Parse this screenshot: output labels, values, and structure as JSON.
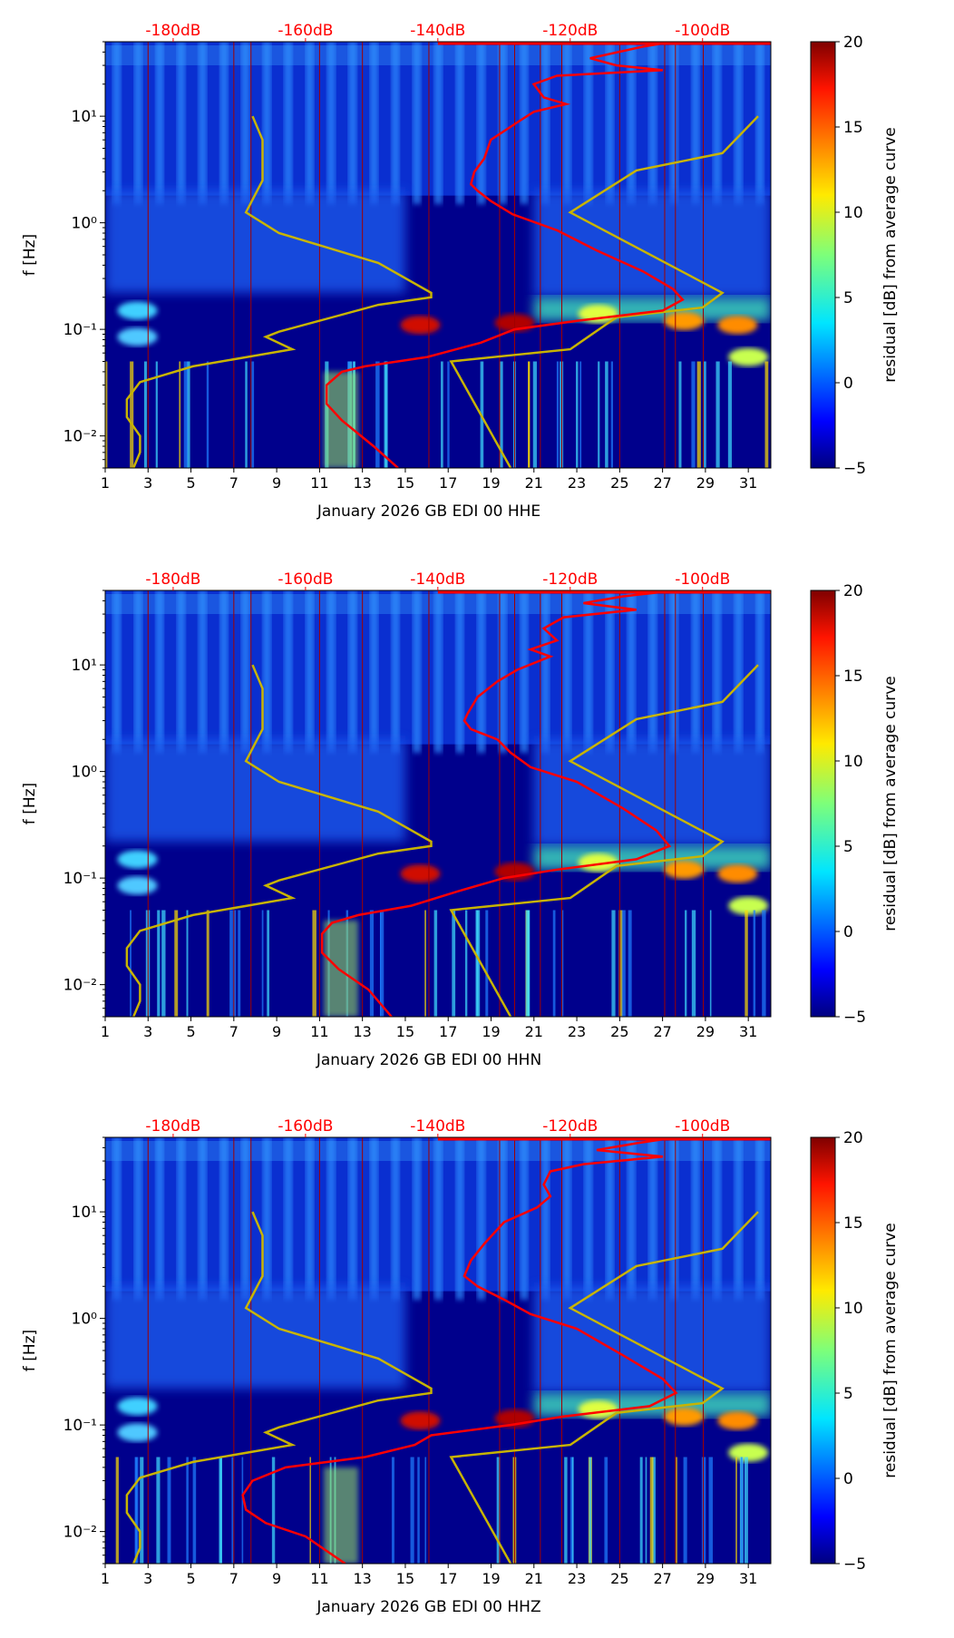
{
  "chart_data": [
    {
      "type": "heatmap",
      "title": "",
      "xlabel": "January 2026 GB EDI 00 HHE",
      "ylabel": "f [Hz]",
      "xlim": [
        1,
        32.05
      ],
      "ylim": [
        0.005,
        50
      ],
      "yscale": "log",
      "xticks": [
        "1",
        "3",
        "5",
        "7",
        "9",
        "11",
        "13",
        "15",
        "17",
        "19",
        "21",
        "23",
        "25",
        "27",
        "29",
        "31"
      ],
      "yticks": [
        {
          "value": 0.01,
          "label": "10⁻²"
        },
        {
          "value": 0.1,
          "label": "10⁻¹"
        },
        {
          "value": 1,
          "label": "10⁰"
        },
        {
          "value": 10,
          "label": "10¹"
        }
      ],
      "top_axis_ticks": [
        "-180dB",
        "-160dB",
        "-140dB",
        "-120dB",
        "-100dB"
      ],
      "colorbar": {
        "label": "residual [dB] from average curve",
        "range": [
          -5,
          20
        ],
        "ticks": [
          "20",
          "15",
          "10",
          "5",
          "0",
          "−5"
        ]
      },
      "red_curve_db": [
        [
          -104.5,
          50
        ],
        [
          -109,
          45
        ],
        [
          -117,
          35
        ],
        [
          -113,
          30
        ],
        [
          -106,
          27
        ],
        [
          -122,
          24
        ],
        [
          -125.5,
          20
        ],
        [
          -124,
          15
        ],
        [
          -120.6,
          13
        ],
        [
          -125.5,
          11
        ],
        [
          -127.7,
          9
        ],
        [
          -132,
          6
        ],
        [
          -133,
          4
        ],
        [
          -134.5,
          3
        ],
        [
          -135,
          2.3
        ],
        [
          -134,
          2
        ],
        [
          -132,
          1.6
        ],
        [
          -128.7,
          1.2
        ],
        [
          -122,
          0.85
        ],
        [
          -116,
          0.55
        ],
        [
          -109,
          0.35
        ],
        [
          -104.5,
          0.24
        ],
        [
          -103,
          0.19
        ],
        [
          -106,
          0.15
        ],
        [
          -119,
          0.12
        ],
        [
          -128.4,
          0.1
        ],
        [
          -133.5,
          0.075
        ],
        [
          -141.6,
          0.055
        ],
        [
          -151,
          0.045
        ],
        [
          -154.5,
          0.04
        ],
        [
          -156.8,
          0.03
        ],
        [
          -156.8,
          0.02
        ],
        [
          -154.5,
          0.014
        ],
        [
          -149.7,
          0.008
        ],
        [
          -146,
          0.005
        ]
      ]
    },
    {
      "type": "heatmap",
      "title": "",
      "xlabel": "January 2026 GB EDI 00 HHN",
      "ylabel": "f [Hz]",
      "xlim": [
        1,
        32.05
      ],
      "ylim": [
        0.005,
        50
      ],
      "yscale": "log",
      "xticks": [
        "1",
        "3",
        "5",
        "7",
        "9",
        "11",
        "13",
        "15",
        "17",
        "19",
        "21",
        "23",
        "25",
        "27",
        "29",
        "31"
      ],
      "yticks": [
        {
          "value": 0.01,
          "label": "10⁻²"
        },
        {
          "value": 0.1,
          "label": "10⁻¹"
        },
        {
          "value": 1,
          "label": "10⁰"
        },
        {
          "value": 10,
          "label": "10¹"
        }
      ],
      "top_axis_ticks": [
        "-180dB",
        "-160dB",
        "-140dB",
        "-120dB",
        "-100dB"
      ],
      "colorbar": {
        "label": "residual [dB] from average curve",
        "range": [
          -5,
          20
        ],
        "ticks": [
          "20",
          "15",
          "10",
          "5",
          "0",
          "−5"
        ]
      },
      "red_curve_db": [
        [
          -104,
          50
        ],
        [
          -112,
          44
        ],
        [
          -118,
          38
        ],
        [
          -110,
          33
        ],
        [
          -121,
          28
        ],
        [
          -124,
          22
        ],
        [
          -122,
          17
        ],
        [
          -126,
          14
        ],
        [
          -123,
          12
        ],
        [
          -128,
          9
        ],
        [
          -131,
          7
        ],
        [
          -134,
          5
        ],
        [
          -135.5,
          3.5
        ],
        [
          -136,
          3
        ],
        [
          -135,
          2.5
        ],
        [
          -131,
          2
        ],
        [
          -129,
          1.5
        ],
        [
          -126,
          1.1
        ],
        [
          -119,
          0.8
        ],
        [
          -112,
          0.45
        ],
        [
          -107,
          0.28
        ],
        [
          -105,
          0.2
        ],
        [
          -110,
          0.15
        ],
        [
          -122,
          0.12
        ],
        [
          -130,
          0.1
        ],
        [
          -137,
          0.075
        ],
        [
          -144,
          0.055
        ],
        [
          -152,
          0.045
        ],
        [
          -156,
          0.038
        ],
        [
          -157.5,
          0.03
        ],
        [
          -157.5,
          0.02
        ],
        [
          -155,
          0.014
        ],
        [
          -150.5,
          0.009
        ],
        [
          -147,
          0.005
        ]
      ]
    },
    {
      "type": "heatmap",
      "title": "",
      "xlabel": "January 2026 GB EDI 00 HHZ",
      "ylabel": "f [Hz]",
      "xlim": [
        1,
        32.05
      ],
      "ylim": [
        0.005,
        50
      ],
      "yscale": "log",
      "xticks": [
        "1",
        "3",
        "5",
        "7",
        "9",
        "11",
        "13",
        "15",
        "17",
        "19",
        "21",
        "23",
        "25",
        "27",
        "29",
        "31"
      ],
      "yticks": [
        {
          "value": 0.01,
          "label": "10⁻²"
        },
        {
          "value": 0.1,
          "label": "10⁻¹"
        },
        {
          "value": 1,
          "label": "10⁰"
        },
        {
          "value": 10,
          "label": "10¹"
        }
      ],
      "top_axis_ticks": [
        "-180dB",
        "-160dB",
        "-140dB",
        "-120dB",
        "-100dB"
      ],
      "colorbar": {
        "label": "residual [dB] from average curve",
        "range": [
          -5,
          20
        ],
        "ticks": [
          "20",
          "15",
          "10",
          "5",
          "0",
          "−5"
        ]
      },
      "red_curve_db": [
        [
          -104,
          50
        ],
        [
          -110,
          44
        ],
        [
          -116,
          38
        ],
        [
          -106,
          33
        ],
        [
          -118,
          28
        ],
        [
          -123,
          24
        ],
        [
          -124,
          18
        ],
        [
          -123,
          14
        ],
        [
          -125,
          11
        ],
        [
          -130,
          8
        ],
        [
          -133,
          5
        ],
        [
          -135,
          3.5
        ],
        [
          -136,
          2.5
        ],
        [
          -134,
          2
        ],
        [
          -130,
          1.5
        ],
        [
          -126,
          1.1
        ],
        [
          -119,
          0.8
        ],
        [
          -112,
          0.45
        ],
        [
          -106,
          0.27
        ],
        [
          -104,
          0.2
        ],
        [
          -108,
          0.15
        ],
        [
          -121,
          0.12
        ],
        [
          -129,
          0.1
        ],
        [
          -141,
          0.08
        ],
        [
          -143.5,
          0.065
        ],
        [
          -151,
          0.05
        ],
        [
          -163,
          0.04
        ],
        [
          -168,
          0.03
        ],
        [
          -169.5,
          0.022
        ],
        [
          -169,
          0.016
        ],
        [
          -166,
          0.012
        ],
        [
          -160,
          0.009
        ],
        [
          -154,
          0.005
        ]
      ]
    }
  ],
  "reference_curves_db": {
    "low_noise_model": [
      [
        -168,
        10
      ],
      [
        -166.5,
        6
      ],
      [
        -166.5,
        2.5
      ],
      [
        -169,
        1.25
      ],
      [
        -164,
        0.8
      ],
      [
        -149,
        0.42
      ],
      [
        -141,
        0.22
      ],
      [
        -141,
        0.2
      ],
      [
        -149,
        0.17
      ],
      [
        -164,
        0.095
      ],
      [
        -166,
        0.085
      ],
      [
        -162,
        0.065
      ],
      [
        -177,
        0.045
      ],
      [
        -185,
        0.032
      ],
      [
        -187,
        0.022
      ],
      [
        -187,
        0.015
      ],
      [
        -185,
        0.01
      ],
      [
        -185,
        0.007
      ],
      [
        -186,
        0.005
      ]
    ],
    "high_noise_model": [
      [
        -91.6,
        10
      ],
      [
        -97,
        4.5
      ],
      [
        -110,
        3.1
      ],
      [
        -120,
        1.25
      ],
      [
        -97,
        0.22
      ],
      [
        -100,
        0.16
      ],
      [
        -113,
        0.13
      ],
      [
        -120,
        0.065
      ],
      [
        -138,
        0.05
      ],
      [
        -129,
        0.005
      ]
    ]
  },
  "colors": {
    "red_curve": "#ff0000",
    "reference_curve": "#c8b400",
    "background": "#000080"
  }
}
